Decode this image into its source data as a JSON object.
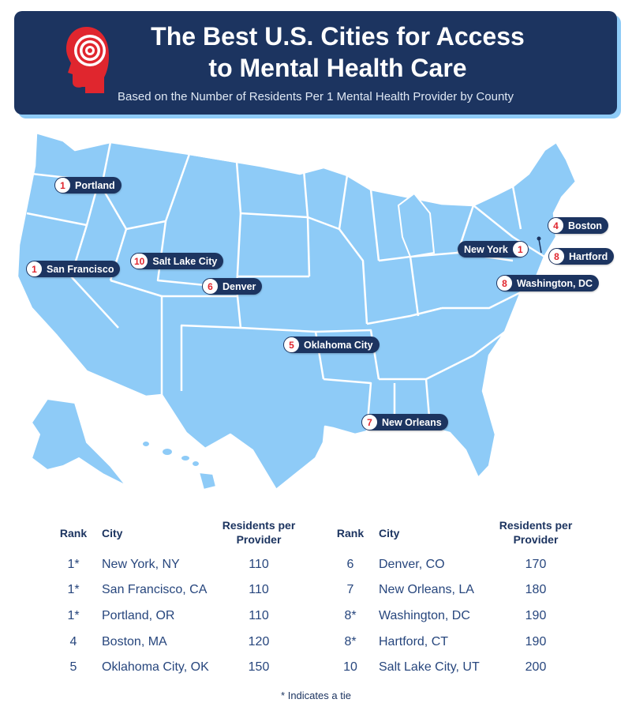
{
  "header": {
    "title_line1": "The Best U.S. Cities for Access",
    "title_line2": "to Mental Health Care",
    "subtitle": "Based on the Number of Residents Per 1 Mental Health Provider by County",
    "icon": "head-target-icon"
  },
  "map": {
    "land_color": "#8ecbf7",
    "border_color": "#ffffff",
    "callouts": [
      {
        "rank": "1",
        "city": "Portland"
      },
      {
        "rank": "1",
        "city": "San Francisco"
      },
      {
        "rank": "10",
        "city": "Salt Lake City"
      },
      {
        "rank": "6",
        "city": "Denver"
      },
      {
        "rank": "5",
        "city": "Oklahoma City"
      },
      {
        "rank": "7",
        "city": "New Orleans"
      },
      {
        "rank": "4",
        "city": "Boston"
      },
      {
        "rank": "1",
        "city": "New York"
      },
      {
        "rank": "8",
        "city": "Hartford"
      },
      {
        "rank": "8",
        "city": "Washington, DC"
      }
    ]
  },
  "table": {
    "headers": {
      "rank": "Rank",
      "city": "City",
      "res_line1": "Residents per",
      "res_line2": "Provider"
    },
    "left_rows": [
      {
        "rank": "1*",
        "city": "New York, NY",
        "value": "110"
      },
      {
        "rank": "1*",
        "city": "San Francisco, CA",
        "value": "110"
      },
      {
        "rank": "1*",
        "city": "Portland, OR",
        "value": "110"
      },
      {
        "rank": "4",
        "city": "Boston, MA",
        "value": "120"
      },
      {
        "rank": "5",
        "city": "Oklahoma City, OK",
        "value": "150"
      }
    ],
    "right_rows": [
      {
        "rank": "6",
        "city": "Denver, CO",
        "value": "170"
      },
      {
        "rank": "7",
        "city": "New Orleans, LA",
        "value": "180"
      },
      {
        "rank": "8*",
        "city": "Washington, DC",
        "value": "190"
      },
      {
        "rank": "8*",
        "city": "Hartford, CT",
        "value": "190"
      },
      {
        "rank": "10",
        "city": "Salt Lake City, UT",
        "value": "200"
      }
    ]
  },
  "footnote": "* Indicates a tie"
}
